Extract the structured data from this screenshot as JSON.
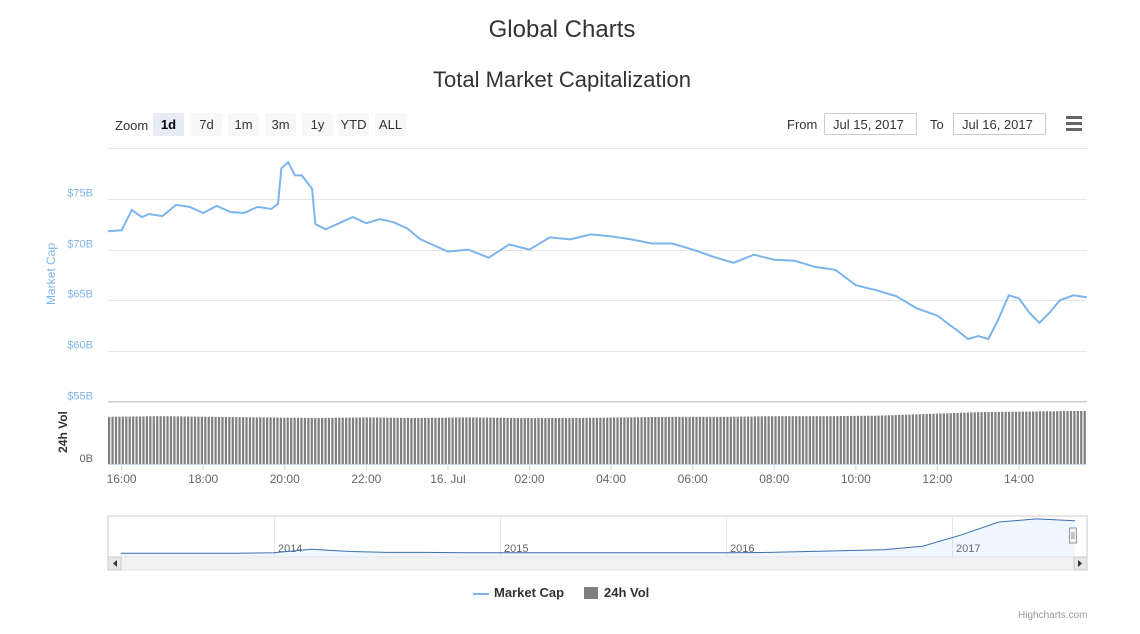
{
  "page": {
    "title": "Global Charts",
    "credits": "Highcharts.com"
  },
  "toolbar": {
    "zoom_label": "Zoom",
    "zoom_buttons": [
      "1d",
      "7d",
      "1m",
      "3m",
      "1y",
      "YTD",
      "ALL"
    ],
    "active_zoom": "1d",
    "from_label": "From",
    "from_value": "Jul 15, 2017",
    "to_label": "To",
    "to_value": "Jul 16, 2017",
    "menu_icon": "hamburger-menu-icon"
  },
  "chart_data": {
    "type": "line",
    "title": "Total Market Capitalization",
    "colors": {
      "market_cap": "#7cb5ec",
      "volume": "#7f7f7f",
      "navigator": "#3a6fb0"
    },
    "x_tick_labels": [
      "16:00",
      "18:00",
      "20:00",
      "22:00",
      "16. Jul",
      "02:00",
      "04:00",
      "06:00",
      "08:00",
      "10:00",
      "12:00",
      "14:00"
    ],
    "x_range": [
      "2017-07-15 15:40",
      "2017-07-16 15:40"
    ],
    "series": [
      {
        "name": "Market Cap",
        "axis_label": "Market Cap",
        "y_tick_labels": [
          "$55B",
          "$60B",
          "$65B",
          "$70B",
          "$75B"
        ],
        "y_ticks": [
          55,
          60,
          65,
          70,
          75
        ],
        "ylim": [
          55,
          80
        ],
        "unit": "billion USD",
        "x": [
          "2017-07-15 15:40",
          "2017-07-15 16:00",
          "2017-07-15 16:15",
          "2017-07-15 16:30",
          "2017-07-15 16:40",
          "2017-07-15 17:00",
          "2017-07-15 17:20",
          "2017-07-15 17:40",
          "2017-07-15 18:00",
          "2017-07-15 18:20",
          "2017-07-15 18:40",
          "2017-07-15 19:00",
          "2017-07-15 19:20",
          "2017-07-15 19:40",
          "2017-07-15 19:50",
          "2017-07-15 19:55",
          "2017-07-15 20:05",
          "2017-07-15 20:15",
          "2017-07-15 20:25",
          "2017-07-15 20:40",
          "2017-07-15 20:45",
          "2017-07-15 21:00",
          "2017-07-15 21:20",
          "2017-07-15 21:40",
          "2017-07-15 22:00",
          "2017-07-15 22:20",
          "2017-07-15 22:40",
          "2017-07-15 23:00",
          "2017-07-15 23:20",
          "2017-07-15 23:40",
          "2017-07-16 00:00",
          "2017-07-16 00:30",
          "2017-07-16 01:00",
          "2017-07-16 01:30",
          "2017-07-16 02:00",
          "2017-07-16 02:30",
          "2017-07-16 03:00",
          "2017-07-16 03:30",
          "2017-07-16 04:00",
          "2017-07-16 04:30",
          "2017-07-16 05:00",
          "2017-07-16 05:30",
          "2017-07-16 06:00",
          "2017-07-16 06:30",
          "2017-07-16 07:00",
          "2017-07-16 07:30",
          "2017-07-16 08:00",
          "2017-07-16 08:30",
          "2017-07-16 09:00",
          "2017-07-16 09:30",
          "2017-07-16 10:00",
          "2017-07-16 10:30",
          "2017-07-16 11:00",
          "2017-07-16 11:30",
          "2017-07-16 12:00",
          "2017-07-16 12:30",
          "2017-07-16 12:45",
          "2017-07-16 13:00",
          "2017-07-16 13:15",
          "2017-07-16 13:30",
          "2017-07-16 13:45",
          "2017-07-16 14:00",
          "2017-07-16 14:15",
          "2017-07-16 14:30",
          "2017-07-16 14:45",
          "2017-07-16 15:00",
          "2017-07-16 15:20",
          "2017-07-16 15:40"
        ],
        "values": [
          71.8,
          71.9,
          73.9,
          73.2,
          73.5,
          73.3,
          74.4,
          74.2,
          73.6,
          74.3,
          73.7,
          73.6,
          74.2,
          74.0,
          74.5,
          78.0,
          78.6,
          77.3,
          77.3,
          76.0,
          72.5,
          72.0,
          72.6,
          73.2,
          72.6,
          73.0,
          72.7,
          72.1,
          71.0,
          70.4,
          69.8,
          70.0,
          69.2,
          70.5,
          70.0,
          71.2,
          71.0,
          71.5,
          71.3,
          71.0,
          70.6,
          70.6,
          70.0,
          69.3,
          68.7,
          69.5,
          69.0,
          68.9,
          68.3,
          68.0,
          66.5,
          66.0,
          65.4,
          64.2,
          63.5,
          62.0,
          61.2,
          61.5,
          61.2,
          63.2,
          65.5,
          65.2,
          63.8,
          62.8,
          63.8,
          65.0,
          65.5,
          65.3
        ]
      },
      {
        "name": "24h Vol",
        "axis_label": "24h Vol",
        "y_tick_labels": [
          "0B"
        ],
        "unit": "billion USD",
        "relative_bar_levels": [
          0.8,
          0.81,
          0.8,
          0.79,
          0.78,
          0.79,
          0.78,
          0.79,
          0.78,
          0.78,
          0.79,
          0.8,
          0.8,
          0.81,
          0.81,
          0.82,
          0.85,
          0.88,
          0.89,
          0.9
        ]
      }
    ],
    "navigator": {
      "tick_labels": [
        "2014",
        "2015",
        "2016",
        "2017"
      ],
      "values": [
        0.04,
        0.04,
        0.04,
        0.04,
        0.05,
        0.13,
        0.08,
        0.06,
        0.06,
        0.05,
        0.05,
        0.05,
        0.05,
        0.05,
        0.05,
        0.05,
        0.05,
        0.06,
        0.08,
        0.1,
        0.12,
        0.2,
        0.45,
        0.75,
        0.82,
        0.78
      ]
    },
    "legend": {
      "position": "bottom-center",
      "items": [
        "Market Cap",
        "24h Vol"
      ]
    },
    "grid": true
  }
}
